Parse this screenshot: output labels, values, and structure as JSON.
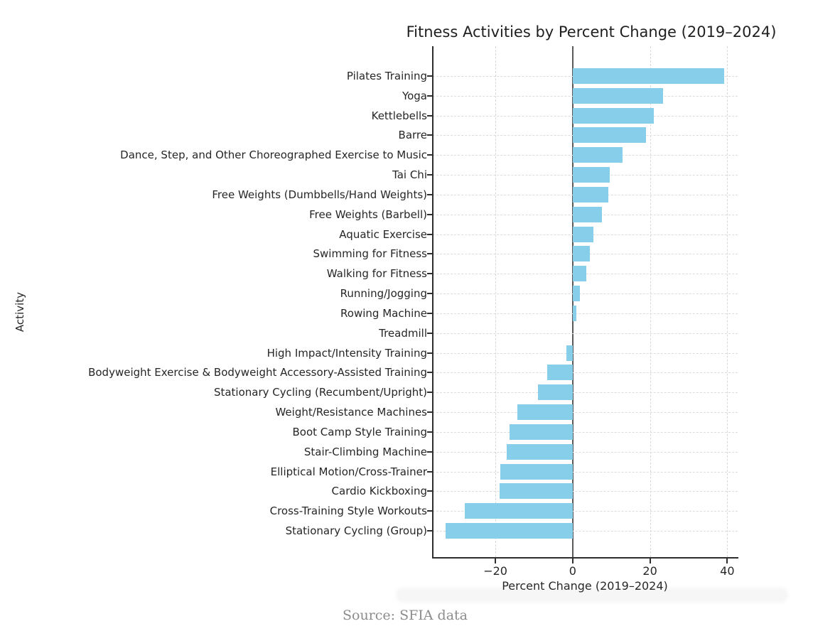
{
  "chart_data": {
    "type": "bar",
    "orientation": "horizontal",
    "title": "Fitness Activities by Percent Change (2019–2024)",
    "xlabel": "Percent Change (2019–2024)",
    "ylabel": "Activity",
    "source_note": "Source: SFIA data",
    "bar_color": "#87CEEB",
    "zero_line_color": "#5a5a5a",
    "grid": true,
    "legend": "none",
    "xlim": [
      -36.2,
      42.7
    ],
    "xticks": [
      {
        "value": -20,
        "label": "−20"
      },
      {
        "value": 0,
        "label": "0"
      },
      {
        "value": 20,
        "label": "20"
      },
      {
        "value": 40,
        "label": "40"
      }
    ],
    "categories": [
      "Pilates Training",
      "Yoga",
      "Kettlebells",
      "Barre",
      "Dance, Step, and Other Choreographed Exercise to Music",
      "Tai Chi",
      "Free Weights (Dumbbells/Hand Weights)",
      "Free Weights (Barbell)",
      "Aquatic Exercise",
      "Swimming for Fitness",
      "Walking for Fitness",
      "Running/Jogging",
      "Rowing Machine",
      "Treadmill",
      "High Impact/Intensity Training",
      "Bodyweight Exercise & Bodyweight Accessory-Assisted Training",
      "Stationary Cycling (Recumbent/Upright)",
      "Weight/Resistance Machines",
      "Boot Camp Style Training",
      "Stair-Climbing Machine",
      "Elliptical Motion/Cross-Trainer",
      "Cardio Kickboxing",
      "Cross-Training Style Workouts",
      "Stationary Cycling (Group)"
    ],
    "values": [
      39.2,
      23.4,
      21.0,
      18.9,
      12.9,
      9.6,
      9.3,
      7.6,
      5.3,
      4.5,
      3.5,
      1.9,
      1.0,
      0.0,
      -1.7,
      -6.5,
      -8.9,
      -14.3,
      -16.3,
      -17.1,
      -18.8,
      -18.9,
      -28.0,
      -32.8
    ]
  }
}
